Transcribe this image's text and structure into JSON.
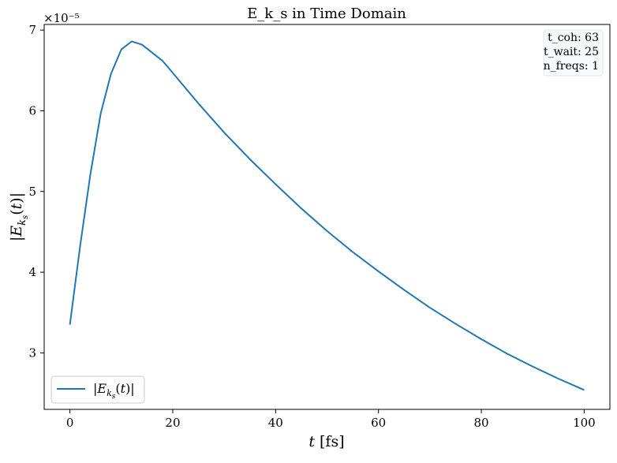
{
  "chart_data": {
    "type": "line",
    "title": "E_k_s in Time Domain",
    "xlabel": "t [fs]",
    "ylabel": "|E_{k_s}(t)|",
    "y_offset_label": "×10⁻⁵",
    "xlim": [
      -5,
      105
    ],
    "ylim": [
      2.3e-05,
      7.07e-05
    ],
    "x_ticks": [
      0,
      20,
      40,
      60,
      80,
      100
    ],
    "y_ticks": [
      3e-05,
      4e-05,
      5e-05,
      6e-05,
      7e-05
    ],
    "x_tick_labels": [
      "0",
      "20",
      "40",
      "60",
      "80",
      "100"
    ],
    "y_tick_labels": [
      "3",
      "4",
      "5",
      "6",
      "7"
    ],
    "grid": false,
    "legend_position": "lower-left",
    "info_box": {
      "position": "top-right",
      "lines": [
        "t_coh: 63",
        "t_wait: 25",
        "n_freqs: 1"
      ]
    },
    "series": [
      {
        "name": "|E_{k_s}(t)|",
        "color": "#1f77b4",
        "x": [
          0,
          2,
          4,
          6,
          8,
          10,
          12,
          14,
          16,
          18,
          20,
          25,
          30,
          35,
          40,
          45,
          50,
          55,
          60,
          65,
          70,
          75,
          80,
          85,
          90,
          95,
          100
        ],
        "y": [
          3.35e-05,
          4.33e-05,
          5.22e-05,
          5.97e-05,
          6.46e-05,
          6.76e-05,
          6.86e-05,
          6.82e-05,
          6.72e-05,
          6.62e-05,
          6.47e-05,
          6.09e-05,
          5.73e-05,
          5.4e-05,
          5.09e-05,
          4.79e-05,
          4.51e-05,
          4.25e-05,
          4.01e-05,
          3.78e-05,
          3.56e-05,
          3.36e-05,
          3.17e-05,
          2.99e-05,
          2.83e-05,
          2.68e-05,
          2.54e-05
        ]
      }
    ]
  }
}
